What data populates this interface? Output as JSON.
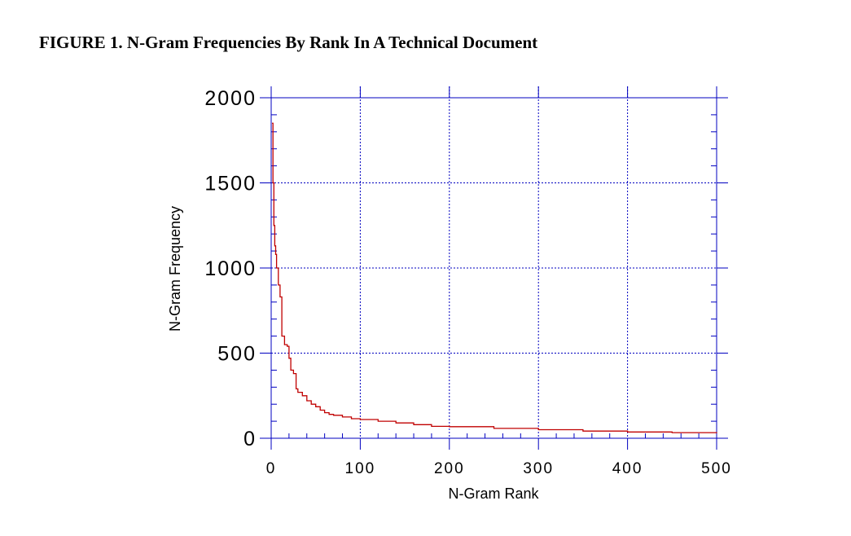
{
  "figure_title": "FIGURE 1. N-Gram Frequencies By Rank In A Technical Document",
  "chart_data": {
    "type": "line",
    "title": "FIGURE 1. N-Gram Frequencies By Rank In A Technical Document",
    "xlabel": "N-Gram Rank",
    "ylabel": "N-Gram Frequency",
    "xlim": [
      0,
      500
    ],
    "ylim": [
      0,
      2000
    ],
    "x_ticks": [
      "0",
      "100",
      "200",
      "300",
      "400",
      "500"
    ],
    "y_ticks": [
      "0",
      "500",
      "1000",
      "1500",
      "2000"
    ],
    "grid": true,
    "colors": {
      "line": "#c00000",
      "grid": "#0000c0",
      "axis": "#0000c0"
    },
    "series": [
      {
        "x": [
          1,
          2,
          3,
          4,
          5,
          6,
          8,
          10,
          12,
          15,
          18,
          20,
          22,
          25,
          28,
          30,
          35,
          40,
          45,
          50,
          55,
          60,
          65,
          70,
          80,
          90,
          100,
          120,
          140,
          160,
          180,
          200,
          250,
          300,
          350,
          400,
          450,
          500
        ],
        "y": [
          1850,
          1500,
          1250,
          1130,
          1080,
          1000,
          900,
          830,
          600,
          550,
          540,
          470,
          400,
          380,
          290,
          270,
          250,
          220,
          200,
          185,
          165,
          150,
          140,
          135,
          125,
          115,
          110,
          100,
          90,
          80,
          70,
          68,
          58,
          50,
          42,
          37,
          33,
          30
        ]
      }
    ]
  }
}
